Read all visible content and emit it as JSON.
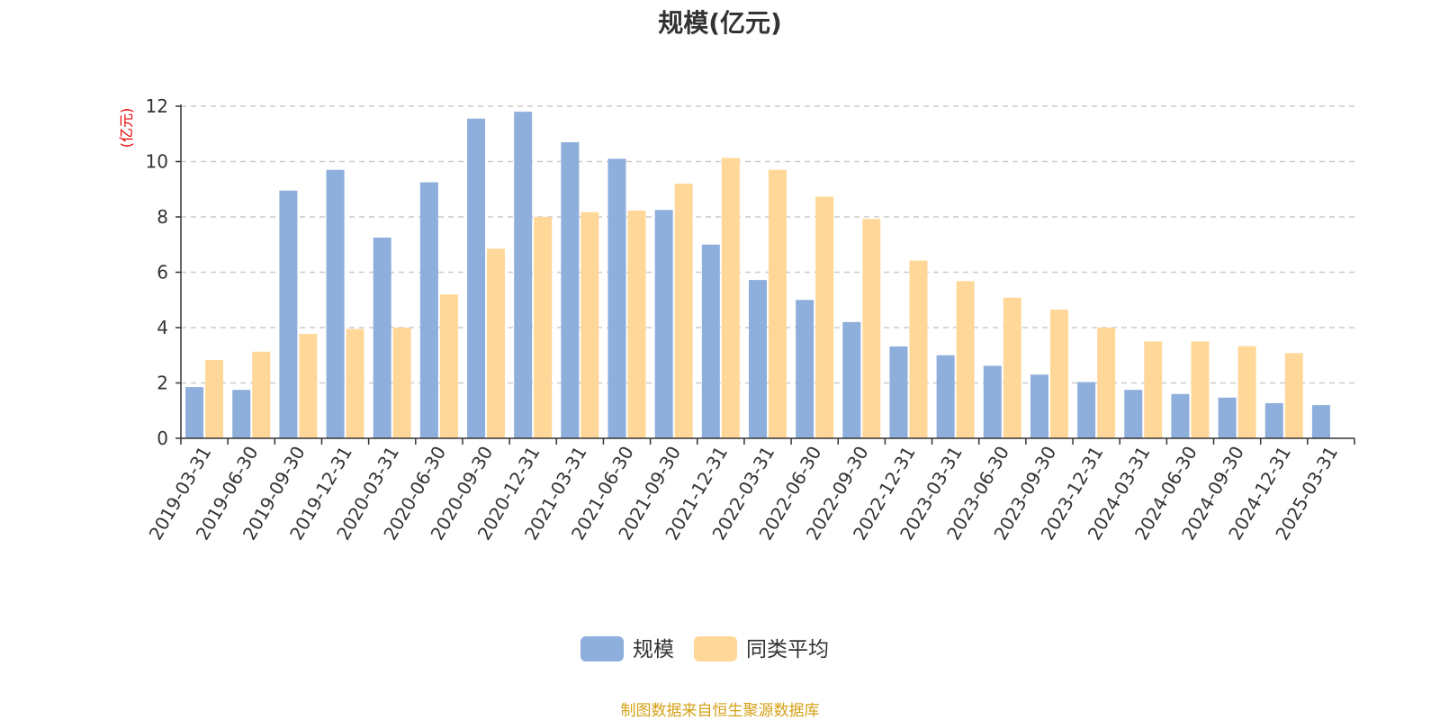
{
  "colors": {
    "series_1": "#8eaedb",
    "series_2": "#ffd899"
  },
  "source_note": "制图数据来自恒生聚源数据库",
  "chart_data": {
    "type": "bar",
    "title": "规模(亿元)",
    "ylabel": "(亿元)",
    "xlabel": "",
    "ylim": [
      0,
      12
    ],
    "yticks": [
      0,
      2,
      4,
      6,
      8,
      10,
      12
    ],
    "grid": true,
    "legend": "bottom-center",
    "categories": [
      "2019-03-31",
      "2019-06-30",
      "2019-09-30",
      "2019-12-31",
      "2020-03-31",
      "2020-06-30",
      "2020-09-30",
      "2020-12-31",
      "2021-03-31",
      "2021-06-30",
      "2021-09-30",
      "2021-12-31",
      "2022-03-31",
      "2022-06-30",
      "2022-09-30",
      "2022-12-31",
      "2023-03-31",
      "2023-06-30",
      "2023-09-30",
      "2023-12-31",
      "2024-03-31",
      "2024-06-30",
      "2024-09-30",
      "2024-12-31",
      "2025-03-31"
    ],
    "series": [
      {
        "name": "规模",
        "values": [
          1.85,
          1.75,
          8.95,
          9.7,
          7.25,
          9.25,
          11.55,
          11.8,
          10.7,
          10.1,
          8.25,
          7.0,
          5.72,
          5.0,
          4.2,
          3.32,
          3.0,
          2.62,
          2.3,
          2.03,
          1.75,
          1.6,
          1.47,
          1.27,
          1.2
        ]
      },
      {
        "name": "同类平均",
        "values": [
          2.83,
          3.13,
          3.77,
          3.95,
          4.0,
          5.2,
          6.85,
          8.0,
          8.17,
          8.23,
          9.2,
          10.13,
          9.7,
          8.73,
          7.93,
          6.42,
          5.68,
          5.08,
          4.65,
          4.0,
          3.5,
          3.5,
          3.33,
          3.08,
          null
        ]
      }
    ]
  }
}
